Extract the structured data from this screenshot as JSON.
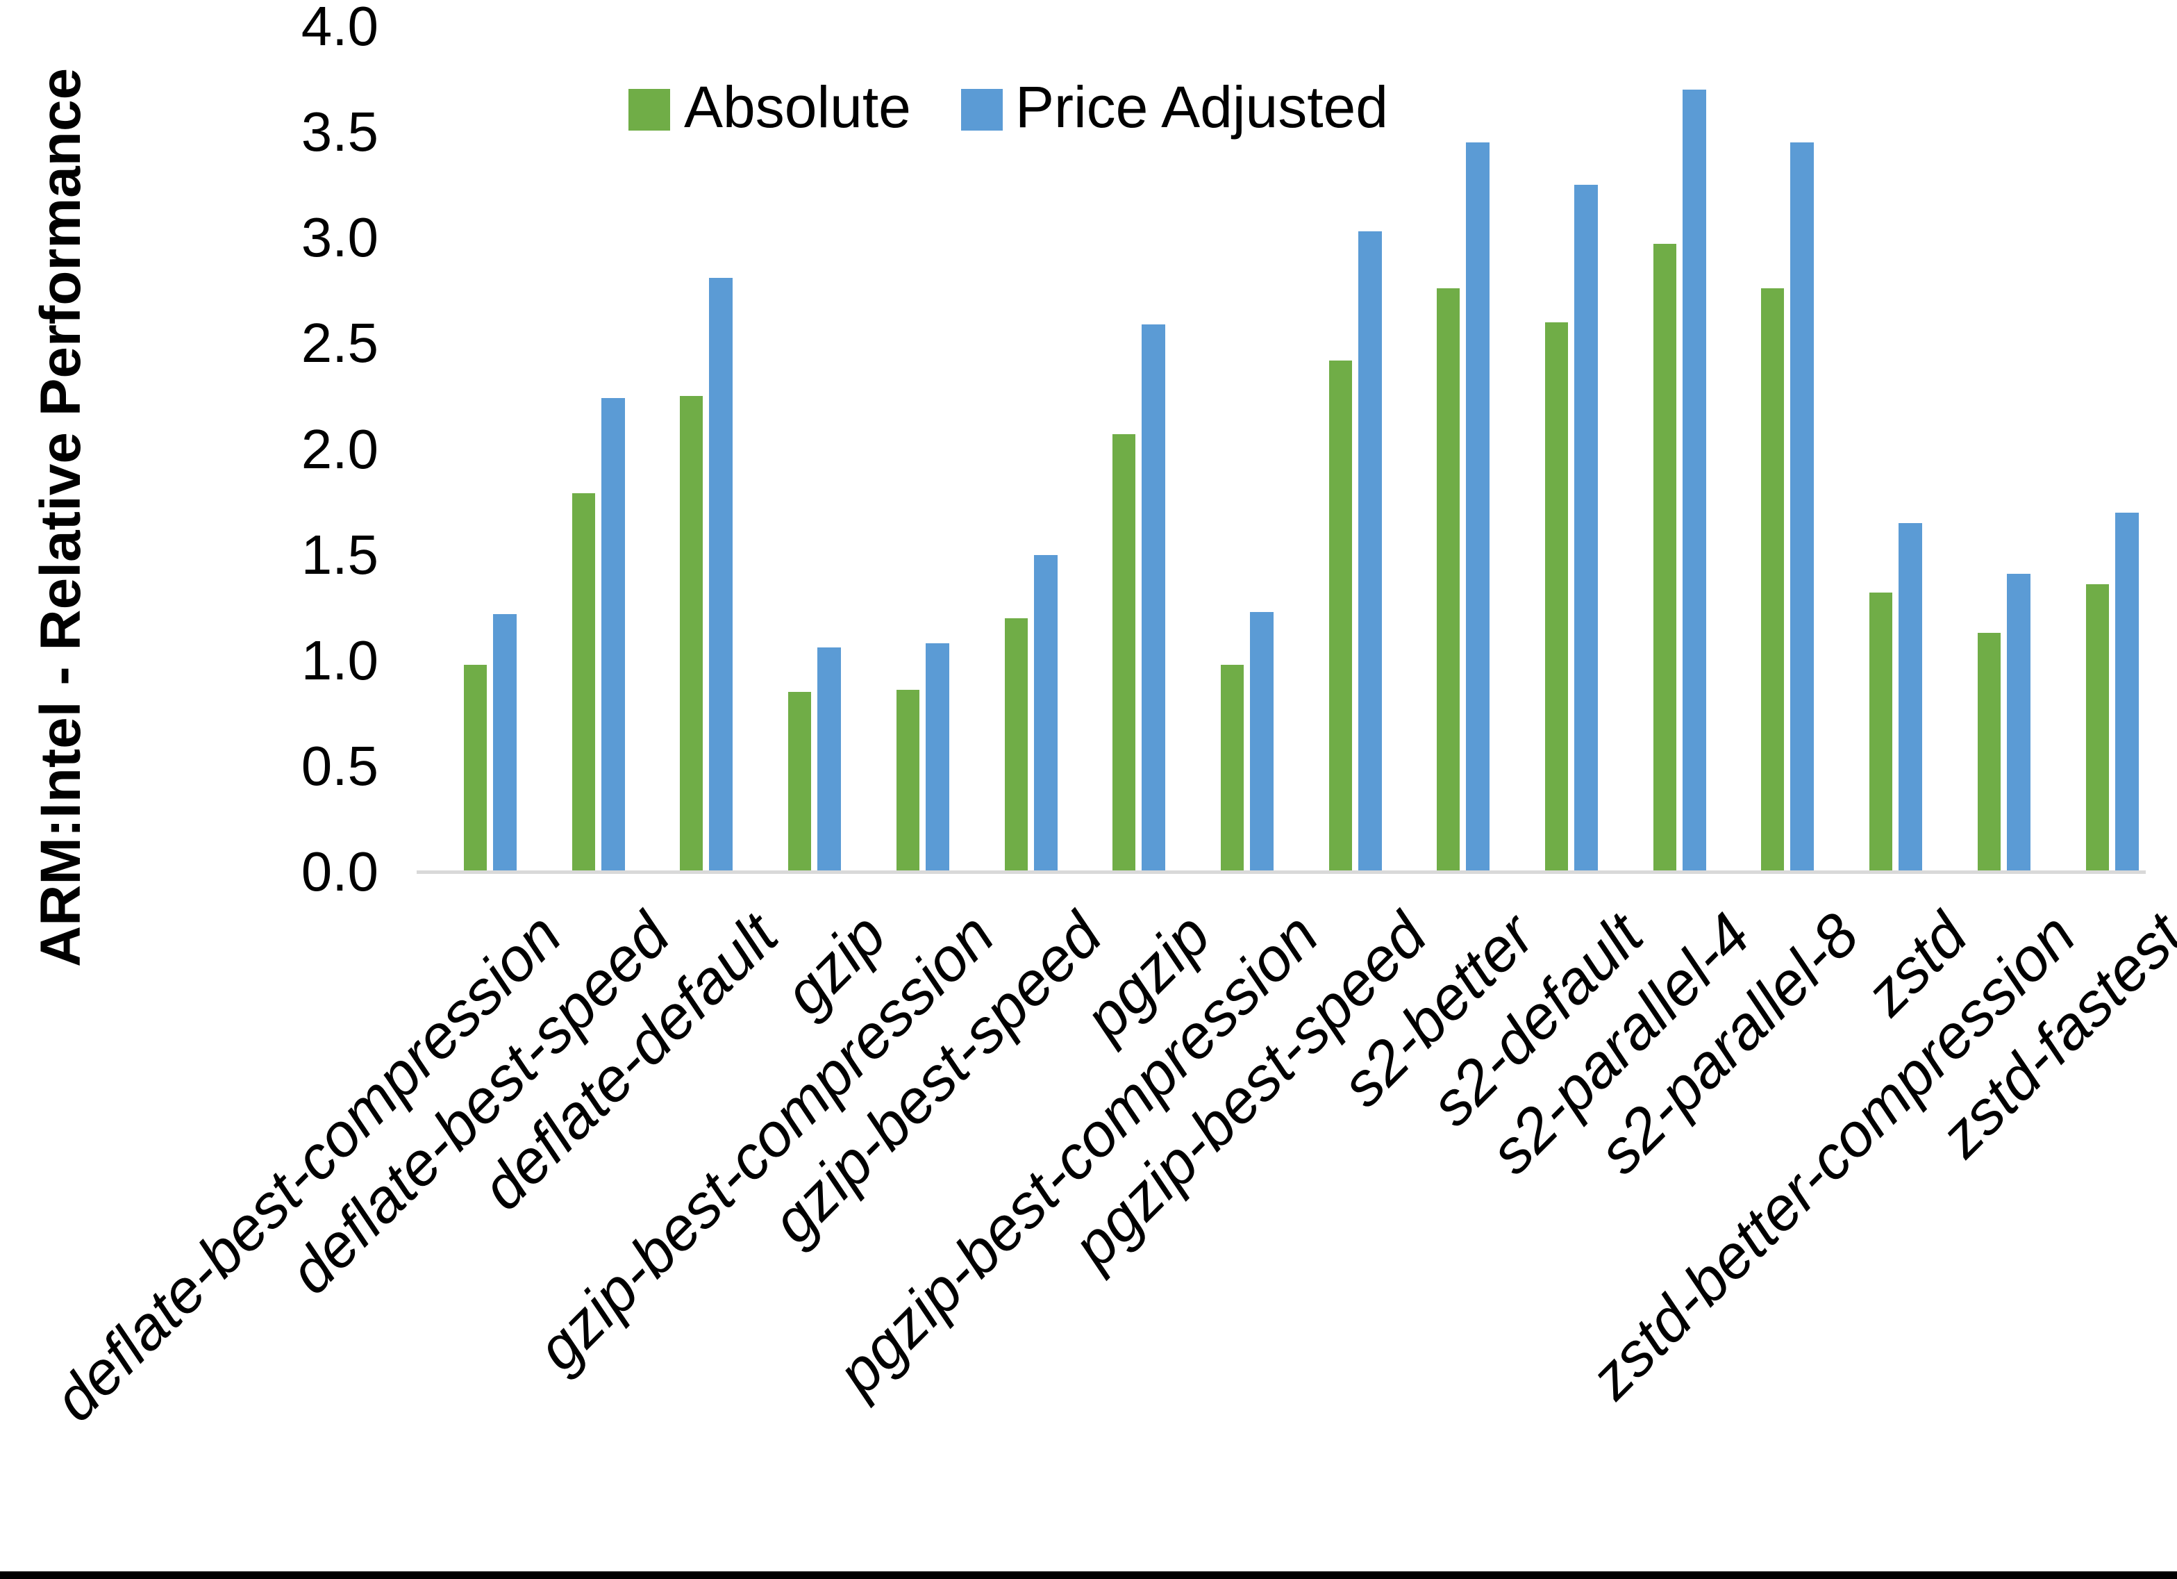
{
  "page": {
    "background": "#FFFFFF",
    "bottom_border_color": "#000000"
  },
  "chart_data": {
    "type": "bar",
    "title": "",
    "xlabel": "",
    "ylabel": "ARM:Intel - Relative Performance",
    "ylim": [
      0.0,
      4.0
    ],
    "ytick_step": 0.5,
    "yticks": [
      4.0,
      3.5,
      3.0,
      2.5,
      2.0,
      1.5,
      1.0,
      0.5,
      0.0
    ],
    "grid": false,
    "legend_position": "top",
    "axis_line_color": "#D9D9D9",
    "text_color": "#000000",
    "categories": [
      "deflate-best-compression",
      "deflate-best-speed",
      "deflate-default",
      "gzip",
      "gzip-best-compression",
      "gzip-best-speed",
      "pgzip",
      "pgzip-best-compression",
      "pgzip-best-speed",
      "s2-better",
      "s2-default",
      "s2-parallel-4",
      "s2-parallel-8",
      "zstd",
      "zstd-better-compression",
      "zstd-fastest"
    ],
    "series": [
      {
        "name": "Absolute",
        "color": "#70AD47",
        "values": [
          0.98,
          1.79,
          2.25,
          0.85,
          0.86,
          1.2,
          2.07,
          0.98,
          2.42,
          2.76,
          2.6,
          2.97,
          2.76,
          1.32,
          1.13,
          1.36
        ]
      },
      {
        "name": "Price Adjusted",
        "color": "#5B9BD5",
        "values": [
          1.22,
          2.24,
          2.81,
          1.06,
          1.08,
          1.5,
          2.59,
          1.23,
          3.03,
          3.45,
          3.25,
          3.7,
          3.45,
          1.65,
          1.41,
          1.7
        ]
      }
    ]
  }
}
